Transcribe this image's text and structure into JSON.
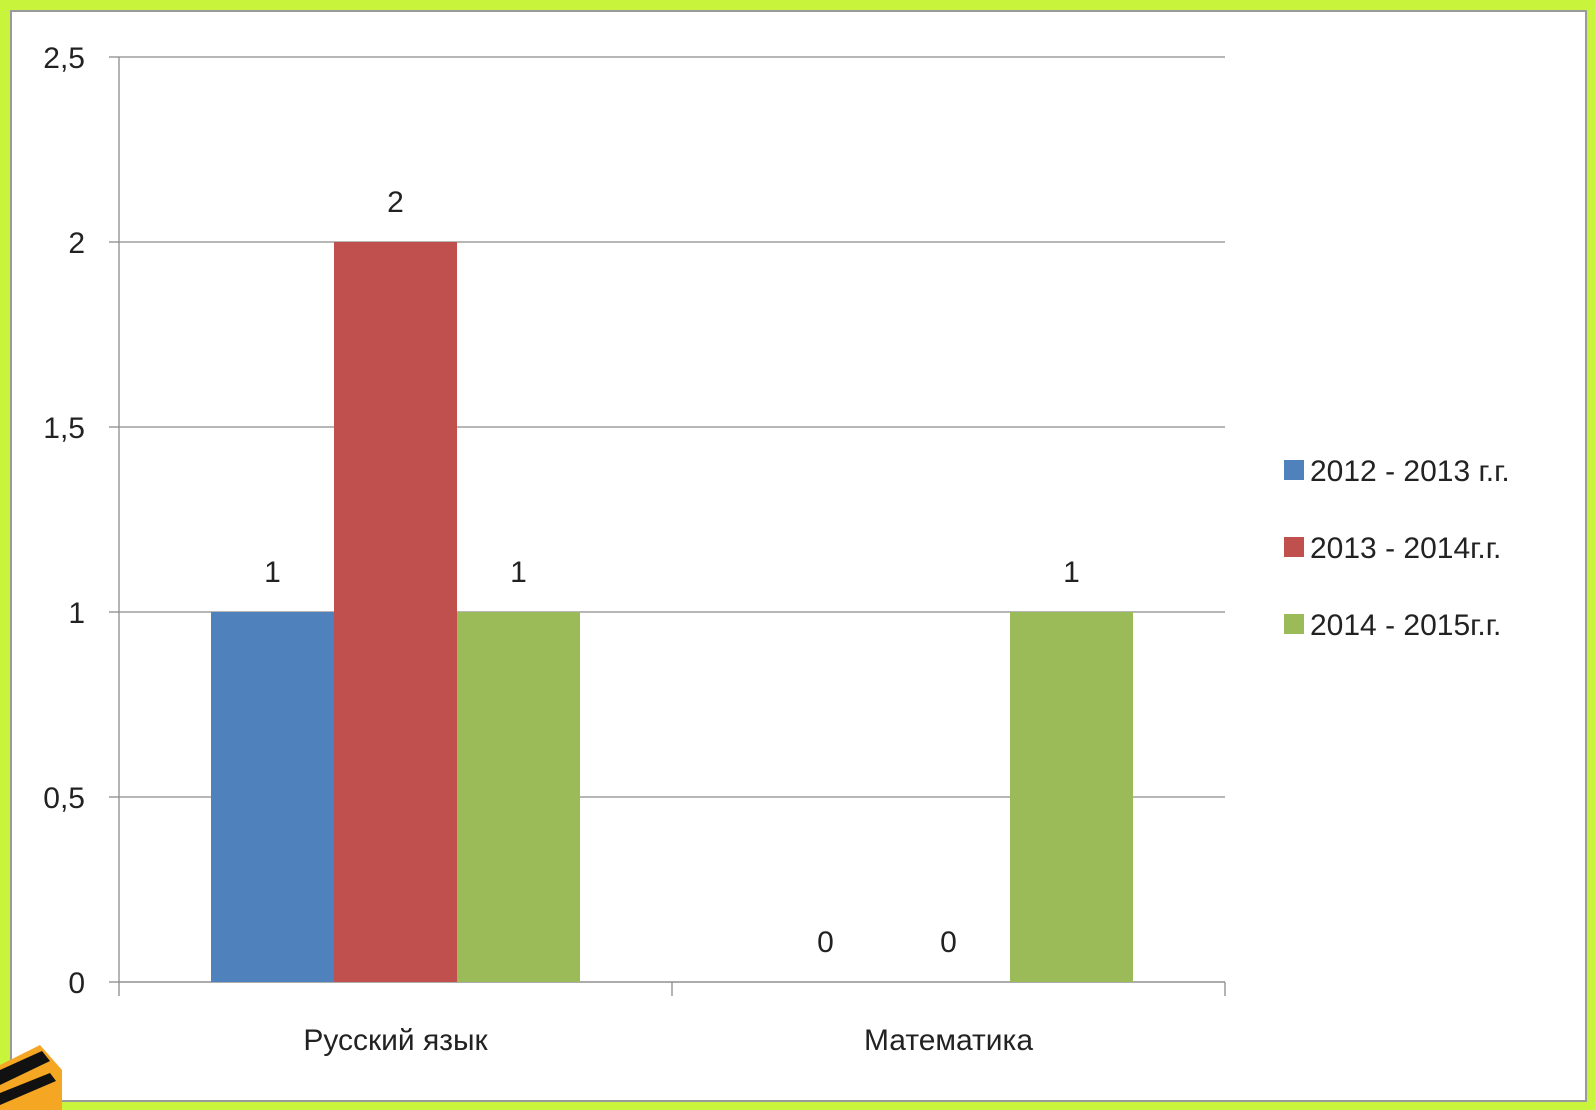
{
  "chart_data": {
    "type": "bar",
    "title": "",
    "xlabel": "",
    "ylabel": "",
    "categories": [
      "Русский язык",
      "Математика"
    ],
    "series": [
      {
        "name": "2012 - 2013 г.г.",
        "values": [
          1,
          0
        ],
        "color": "#4f81bd"
      },
      {
        "name": "2013 - 2014г.г.",
        "values": [
          2,
          0
        ],
        "color": "#c0504d"
      },
      {
        "name": "2014 - 2015г.г.",
        "values": [
          1,
          1
        ],
        "color": "#9bbb59"
      }
    ],
    "ylim": [
      0,
      2.5
    ],
    "yticks": [
      0,
      0.5,
      1,
      1.5,
      2,
      2.5
    ],
    "ytick_labels": [
      "0",
      "0,5",
      "1",
      "1,5",
      "2",
      "2,5"
    ],
    "grid": true,
    "data_labels": true,
    "legend_position": "right"
  },
  "theme": {
    "background": "#c8f53c",
    "panel": "#ffffff",
    "gridline": "#8c8c8c",
    "axis": "#8c8c8c"
  }
}
